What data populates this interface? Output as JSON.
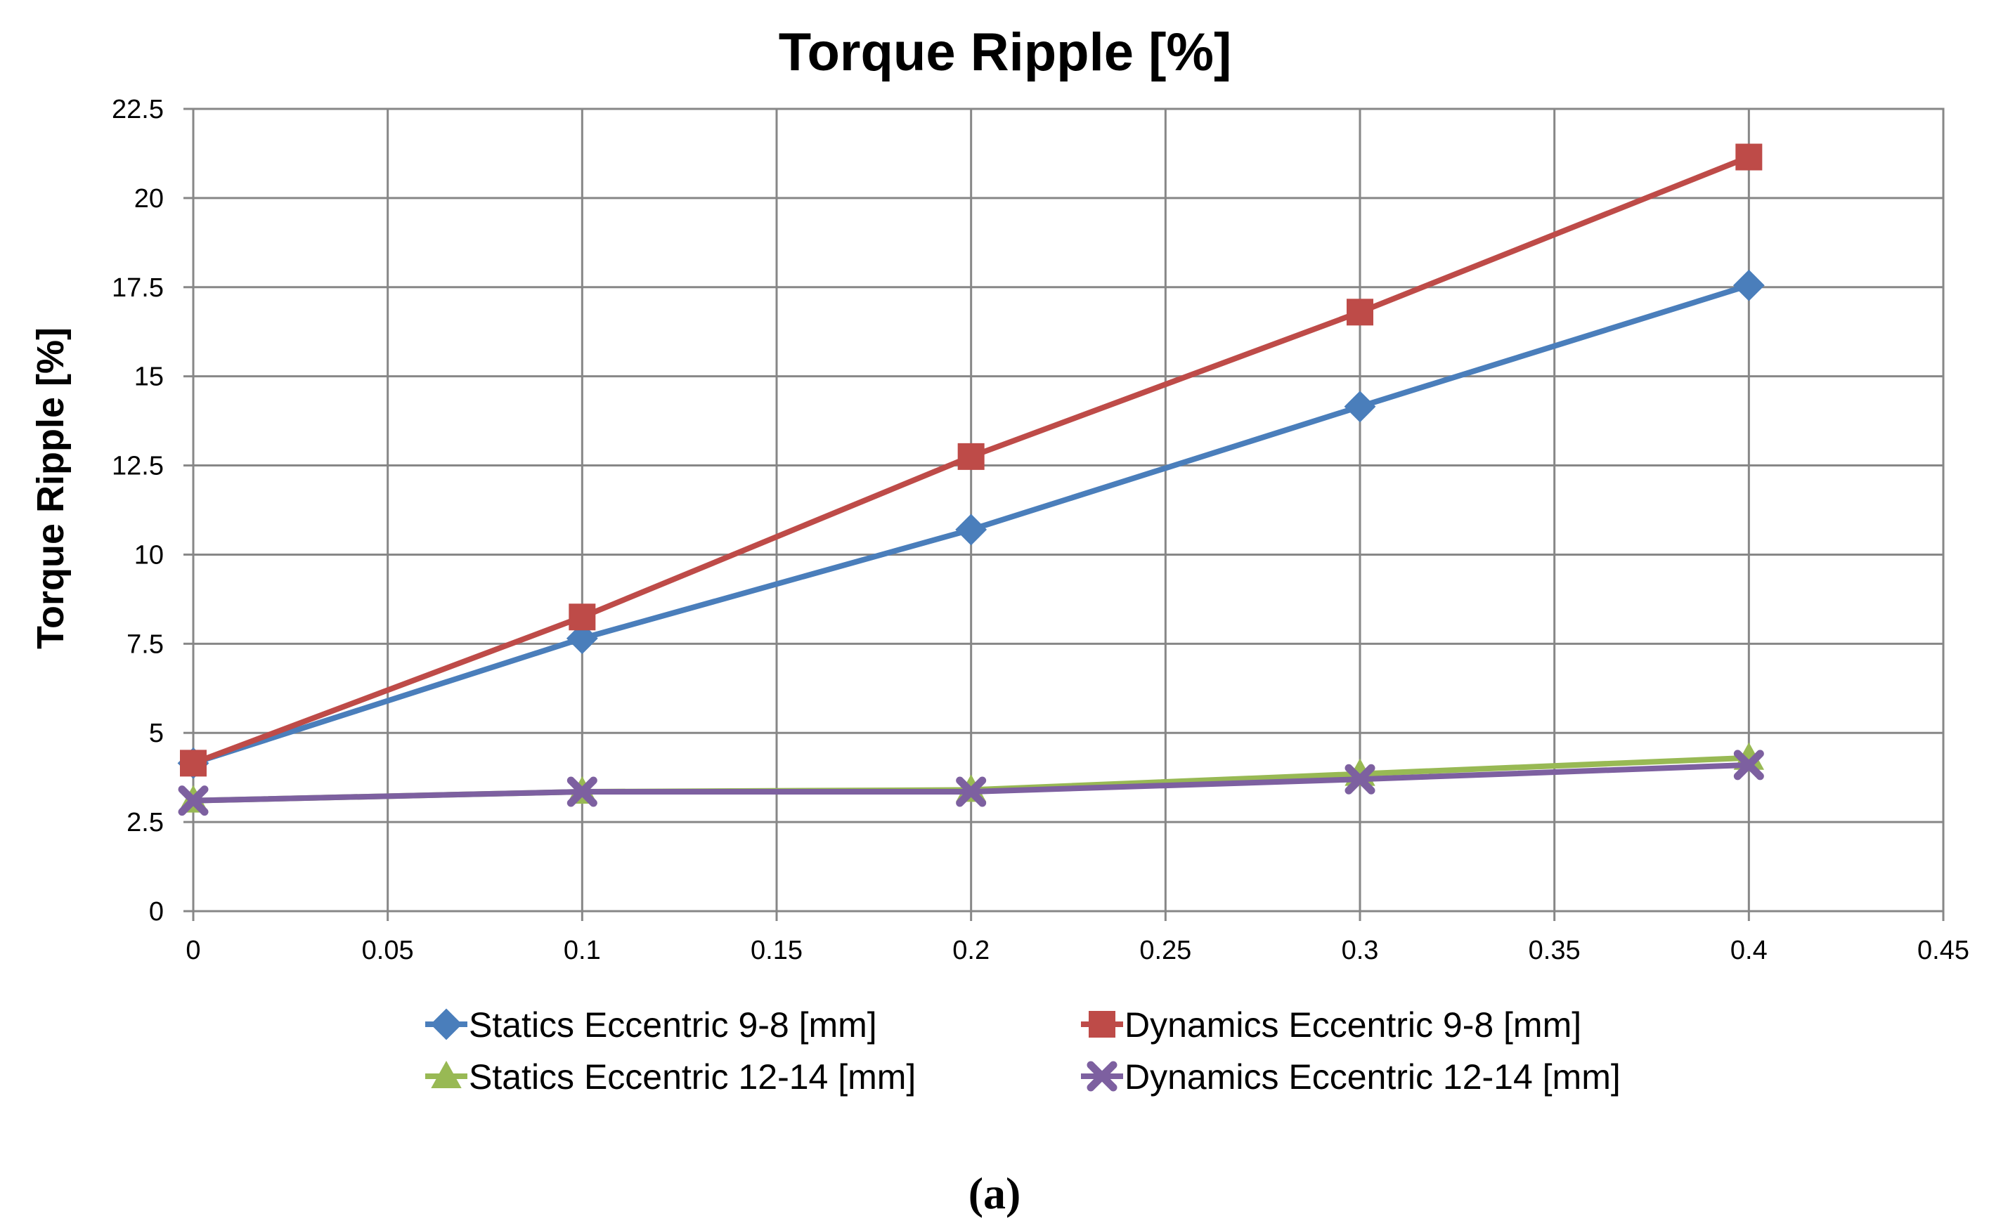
{
  "chart_data": {
    "type": "line",
    "title": "Torque Ripple [%]",
    "xlabel": "",
    "ylabel": "Torque Ripple [%]",
    "xlim": [
      0,
      0.45
    ],
    "ylim": [
      0,
      22.5
    ],
    "grid": true,
    "legend_position": "bottom",
    "x_ticks": [
      "0",
      "0.05",
      "0.1",
      "0.15",
      "0.2",
      "0.25",
      "0.3",
      "0.35",
      "0.4",
      "0.45"
    ],
    "y_ticks": [
      "0",
      "2.5",
      "5",
      "7.5",
      "10",
      "12.5",
      "15",
      "17.5",
      "20",
      "22.5"
    ],
    "x": [
      0,
      0.1,
      0.2,
      0.3,
      0.4
    ],
    "series": [
      {
        "name": "Statics Eccentric 9-8 [mm]",
        "values": [
          4.15,
          7.65,
          10.7,
          14.15,
          17.55
        ],
        "color": "#4a7ebb",
        "marker": "diamond"
      },
      {
        "name": "Dynamics Eccentric 9-8 [mm]",
        "values": [
          4.15,
          8.25,
          12.75,
          16.8,
          21.15
        ],
        "color": "#be4b48",
        "marker": "square"
      },
      {
        "name": "Statics Eccentric 12-14 [mm]",
        "values": [
          3.1,
          3.35,
          3.4,
          3.85,
          4.3
        ],
        "color": "#98b954",
        "marker": "triangle"
      },
      {
        "name": "Dynamics Eccentric 12-14 [mm]",
        "values": [
          3.1,
          3.35,
          3.35,
          3.7,
          4.1
        ],
        "color": "#7d60a0",
        "marker": "x"
      }
    ]
  },
  "caption": "(a)"
}
